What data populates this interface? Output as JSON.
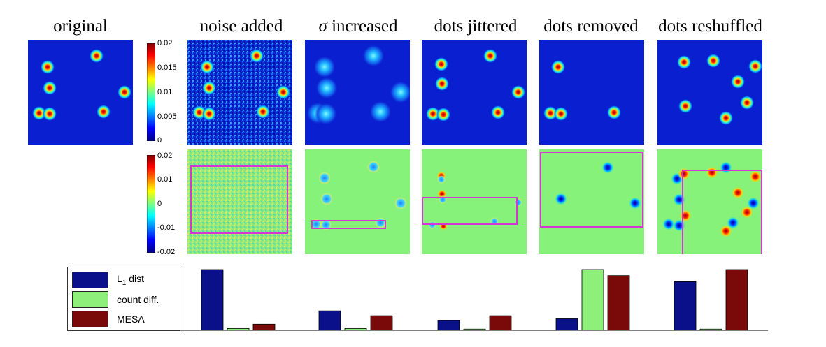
{
  "titles": {
    "original": "original",
    "noise": "noise added",
    "sigma_symbol": "σ",
    "sigma": " increased",
    "jitter": "dots jittered",
    "removed": "dots removed",
    "reshuffled": "dots reshuffled"
  },
  "colorbar_top": {
    "ticks": [
      "0.02",
      "0.015",
      "0.01",
      "0.005",
      "0"
    ]
  },
  "colorbar_bottom": {
    "ticks": [
      "0.02",
      "0.01",
      "0",
      "-0.01",
      "-0.02"
    ]
  },
  "legend": {
    "l1_main": "L",
    "l1_sub": "1",
    "l1_rest": " dist",
    "count": "count diff.",
    "mesa": "MESA"
  },
  "colors": {
    "l1": "#0a0f8a",
    "count": "#8ef07a",
    "mesa": "#7a0a0a",
    "map_bg": "#0a1fcf",
    "diff_bg": "#86f27a",
    "box": "#d437d4"
  },
  "chart_data": {
    "type": "bar",
    "categories": [
      "noise added",
      "σ increased",
      "dots jittered",
      "dots removed",
      "dots reshuffled"
    ],
    "series": [
      {
        "name": "L1 dist",
        "values": [
          1.0,
          0.32,
          0.16,
          0.19,
          0.8
        ]
      },
      {
        "name": "count diff.",
        "values": [
          0.03,
          0.03,
          0.02,
          1.0,
          0.02
        ]
      },
      {
        "name": "MESA",
        "values": [
          0.1,
          0.24,
          0.24,
          0.9,
          1.0
        ]
      }
    ],
    "ylim": [
      0,
      1
    ]
  }
}
